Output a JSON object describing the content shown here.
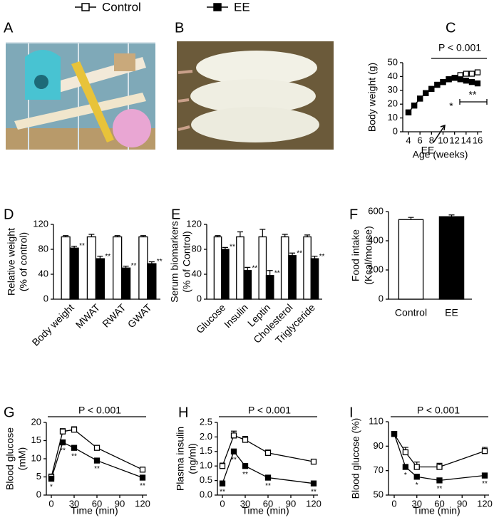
{
  "legend": [
    {
      "name": "Control",
      "fill": "#ffffff"
    },
    {
      "name": "EE",
      "fill": "#000000"
    }
  ],
  "panel_labels": [
    "A",
    "B",
    "C",
    "D",
    "E",
    "F",
    "G",
    "H",
    "I"
  ],
  "chart_data": [
    {
      "type": "line",
      "xlabel": "Age (weeks)",
      "ylabel": [
        "Body weight (g)"
      ],
      "x": [
        4,
        5,
        6,
        7,
        8,
        9,
        10,
        11,
        12,
        13,
        14,
        15,
        16
      ],
      "series": [
        {
          "name": "Control",
          "color": "#000000",
          "fill": "#ffffff",
          "values": [
            14,
            19,
            24,
            28,
            31,
            34,
            36,
            38,
            39,
            41,
            42,
            42,
            43
          ]
        },
        {
          "name": "EE",
          "color": "#000000",
          "fill": "#000000",
          "values": [
            14,
            19,
            24,
            28,
            31,
            34,
            36,
            38,
            39,
            38,
            37,
            36,
            35
          ]
        }
      ],
      "xlim": [
        4,
        16
      ],
      "xticks": [
        4,
        6,
        8,
        10,
        12,
        14,
        16
      ],
      "ylim": [
        0,
        50
      ],
      "yticks": [
        0,
        10,
        20,
        30,
        40,
        50
      ],
      "annotations": [
        "P < 0.001",
        "EE",
        "*",
        "**"
      ]
    },
    {
      "type": "bar",
      "ylabel": [
        "Relative weight",
        "(% of control)"
      ],
      "categories": [
        "Body weight",
        "MWAT",
        "RWAT",
        "GWAT"
      ],
      "series": [
        {
          "name": "Control",
          "color": "#000000",
          "fill": "#ffffff",
          "values": [
            100,
            100,
            100,
            100
          ],
          "errors": [
            2,
            4,
            2,
            2
          ]
        },
        {
          "name": "EE",
          "color": "#000000",
          "fill": "#000000",
          "values": [
            82,
            65,
            50,
            57
          ],
          "errors": [
            3,
            4,
            3,
            3
          ],
          "significance": [
            "**",
            "**",
            "**",
            "**"
          ]
        }
      ],
      "ylim": [
        0,
        120
      ],
      "yticks": [
        0,
        40,
        80,
        120
      ]
    },
    {
      "type": "bar",
      "ylabel": [
        "Serum biomarkers",
        "(% of Control)"
      ],
      "categories": [
        "Glucose",
        "Insulin",
        "Leptin",
        "Cholesterol",
        "Triglyceride"
      ],
      "series": [
        {
          "name": "Control",
          "color": "#000000",
          "fill": "#ffffff",
          "values": [
            100,
            100,
            100,
            100,
            100
          ],
          "errors": [
            2,
            8,
            12,
            4,
            3
          ]
        },
        {
          "name": "EE",
          "color": "#000000",
          "fill": "#000000",
          "values": [
            80,
            46,
            38,
            70,
            65
          ],
          "errors": [
            3,
            5,
            8,
            4,
            4
          ],
          "significance": [
            "**",
            "**",
            "**",
            "**",
            "**"
          ]
        }
      ],
      "ylim": [
        0,
        120
      ],
      "yticks": [
        0,
        40,
        80,
        120
      ]
    },
    {
      "type": "bar",
      "ylabel": [
        "Food intake",
        "(Kcal/mouse)"
      ],
      "categories": [
        "Control",
        "EE"
      ],
      "series": [
        {
          "name": "Food intake",
          "color": "#000000",
          "fills": [
            "#ffffff",
            "#000000"
          ],
          "values": [
            545,
            565
          ],
          "errors": [
            15,
            12
          ]
        }
      ],
      "ylim": [
        0,
        600
      ],
      "yticks": [
        0,
        200,
        400,
        600
      ]
    },
    {
      "type": "line",
      "xlabel": "Time (min)",
      "ylabel": [
        "Blood glucose",
        "(mM)"
      ],
      "x": [
        0,
        15,
        30,
        60,
        120
      ],
      "series": [
        {
          "name": "Control",
          "color": "#000000",
          "fill": "#ffffff",
          "values": [
            5,
            17.5,
            18,
            13,
            7
          ],
          "errors": [
            0.8,
            0.8,
            0.8,
            0.5,
            0.5
          ]
        },
        {
          "name": "EE",
          "color": "#000000",
          "fill": "#000000",
          "values": [
            4.5,
            14.5,
            13,
            9.5,
            4.8
          ],
          "errors": [
            0.5,
            0.6,
            0.6,
            0.5,
            0.5
          ],
          "significance": [
            "*",
            "**",
            "**",
            "**",
            "**"
          ]
        }
      ],
      "xlim": [
        0,
        120
      ],
      "xticks": [
        0,
        30,
        60,
        90,
        120
      ],
      "ylim": [
        0,
        20
      ],
      "yticks": [
        0,
        5,
        10,
        15,
        20
      ],
      "annotations": [
        "P < 0.001"
      ]
    },
    {
      "type": "line",
      "xlabel": "Time (min)",
      "ylabel": [
        "Plasma insulin",
        "(ng/ml)"
      ],
      "x": [
        0,
        15,
        30,
        60,
        120
      ],
      "series": [
        {
          "name": "Control",
          "color": "#000000",
          "fill": "#ffffff",
          "values": [
            1.0,
            2.05,
            1.9,
            1.45,
            1.15
          ],
          "errors": [
            0.1,
            0.15,
            0.12,
            0.1,
            0.08
          ]
        },
        {
          "name": "EE",
          "color": "#000000",
          "fill": "#000000",
          "values": [
            0.4,
            1.5,
            1.0,
            0.6,
            0.4
          ],
          "errors": [
            0.05,
            0.06,
            0.06,
            0.05,
            0.04
          ],
          "significance": [
            "**",
            "**",
            "**",
            "**",
            "**"
          ]
        }
      ],
      "xlim": [
        0,
        120
      ],
      "xticks": [
        0,
        30,
        60,
        90,
        120
      ],
      "ylim": [
        0,
        2.5
      ],
      "yticks": [
        {
          "value": 0,
          "label": "0.0"
        },
        0.5,
        {
          "value": 1,
          "label": "1.0"
        },
        1.5,
        {
          "value": 2,
          "label": "2.0"
        },
        2.5
      ],
      "annotations": [
        "P < 0.001"
      ]
    },
    {
      "type": "line",
      "xlabel": "Time (min)",
      "ylabel": [
        "Blood glucose (%)"
      ],
      "x": [
        0,
        15,
        30,
        60,
        120
      ],
      "series": [
        {
          "name": "Control",
          "color": "#000000",
          "fill": "#ffffff",
          "values": [
            100,
            85,
            73,
            73,
            86
          ],
          "errors": [
            1,
            4,
            4,
            3,
            3
          ]
        },
        {
          "name": "EE",
          "color": "#000000",
          "fill": "#000000",
          "values": [
            100,
            73,
            65,
            62,
            66
          ],
          "errors": [
            1,
            2,
            2,
            2,
            2
          ],
          "significance": [
            null,
            "*",
            "*",
            "**",
            "**"
          ]
        }
      ],
      "xlim": [
        0,
        120
      ],
      "xticks": [
        0,
        30,
        60,
        90,
        120
      ],
      "ylim": [
        50,
        110
      ],
      "yticks": [
        50,
        70,
        90,
        110
      ],
      "annotations": [
        "P < 0.001"
      ]
    }
  ]
}
